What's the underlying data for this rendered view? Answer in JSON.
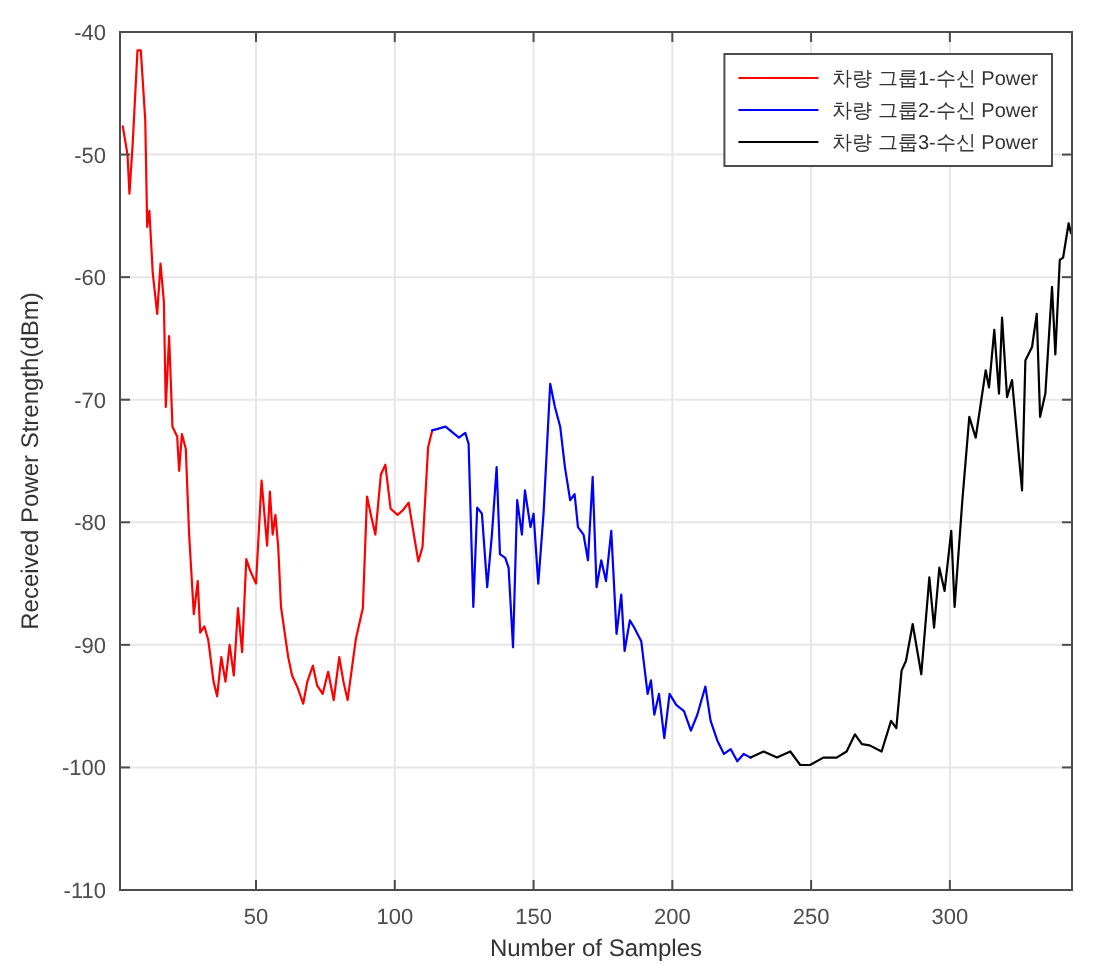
{
  "chart_data": {
    "type": "line",
    "xlabel": "Number of Samples",
    "ylabel": "Received Power Strength(dBm)",
    "xlim": [
      1,
      344
    ],
    "ylim": [
      -110,
      -40
    ],
    "xticks": [
      50,
      100,
      150,
      200,
      250,
      300
    ],
    "yticks": [
      -110,
      -100,
      -90,
      -80,
      -70,
      -60,
      -50,
      -40
    ],
    "grid": true,
    "legend": "top right",
    "series": [
      {
        "name": "차량 그룹1-수신 Power",
        "color": "#ff0000",
        "x": [
          2,
          3.7,
          4.4,
          5.6,
          7.3,
          8.5,
          10.1,
          10.8,
          11.6,
          12.8,
          14.4,
          15.6,
          16.8,
          17.5,
          18.7,
          19.9,
          21.6,
          22.3,
          23.3,
          24.7,
          25.9,
          27.6,
          29,
          29.9,
          31.4,
          32.8,
          34.7,
          36,
          37.5,
          39,
          40.5,
          42,
          43.5,
          45,
          46.5,
          48,
          50,
          52,
          54,
          55,
          56,
          57,
          58,
          59,
          61.6,
          63,
          65,
          67,
          68.5,
          70.5,
          72,
          74,
          76,
          78,
          80,
          81.5,
          83,
          84.5,
          86,
          88.5,
          90,
          91.5,
          93,
          95,
          96.6,
          98.5,
          101,
          103,
          105,
          106.5,
          108.5,
          110,
          112,
          113.5
        ],
        "values": [
          -47.7,
          -50,
          -53.2,
          -49,
          -41.5,
          -41.5,
          -47.2,
          -55.9,
          -54.6,
          -59.7,
          -63,
          -58.9,
          -62,
          -70.6,
          -64.8,
          -72.2,
          -73,
          -75.8,
          -72.8,
          -74,
          -81,
          -87.5,
          -84.8,
          -89,
          -88.5,
          -89.6,
          -93,
          -94.2,
          -91,
          -93,
          -90,
          -92.5,
          -87,
          -90.6,
          -83,
          -84,
          -85,
          -76.6,
          -81.9,
          -77.5,
          -81,
          -79.4,
          -82,
          -86.9,
          -91,
          -92.5,
          -93.5,
          -94.8,
          -93,
          -91.7,
          -93.3,
          -94,
          -92.2,
          -94.5,
          -91,
          -93,
          -94.5,
          -92,
          -89.5,
          -87,
          -77.9,
          -79.5,
          -81,
          -76.1,
          -75.3,
          -78.9,
          -79.4,
          -79,
          -78.4,
          -80.5,
          -83.2,
          -82,
          -73.9,
          -72.5
        ]
      },
      {
        "name": "차량 그룹2-수신 Power",
        "color": "#0000ff",
        "x": [
          113.5,
          118.3,
          123.1,
          125.4,
          126.6,
          128.3,
          129.7,
          131.4,
          133.3,
          135,
          136.7,
          137.9,
          139.8,
          141,
          142.6,
          144.1,
          145.8,
          146.9,
          148.9,
          150,
          151.7,
          153.6,
          156,
          157.7,
          159.6,
          161.3,
          163.2,
          164.8,
          166,
          168,
          169.6,
          171.3,
          172.7,
          174.4,
          176.1,
          178,
          179.9,
          181.6,
          182.8,
          184.7,
          186.3,
          188.8,
          191.1,
          192.3,
          193.5,
          195.2,
          197.1,
          199,
          201.4,
          204.2,
          206.7,
          209,
          211.9,
          213.8,
          216.2,
          218.6,
          221,
          223.4,
          225.7,
          228.2
        ],
        "values": [
          -72.5,
          -72.2,
          -73.1,
          -72.7,
          -73.6,
          -86.9,
          -78.8,
          -79.3,
          -85.3,
          -81,
          -75.5,
          -82.6,
          -82.9,
          -83.7,
          -90.2,
          -78.2,
          -81,
          -77.4,
          -80.4,
          -79.3,
          -85,
          -79.3,
          -68.7,
          -70.6,
          -72.2,
          -75.5,
          -78.2,
          -77.7,
          -80.4,
          -81,
          -83.1,
          -76.3,
          -85.3,
          -83.1,
          -84.8,
          -80.7,
          -89.1,
          -85.9,
          -90.5,
          -88,
          -88.6,
          -89.7,
          -94,
          -92.9,
          -95.7,
          -94,
          -97.6,
          -94,
          -94.9,
          -95.4,
          -97,
          -95.7,
          -93.4,
          -96.2,
          -97.8,
          -98.9,
          -98.5,
          -99.5,
          -98.9,
          -99.2
        ]
      },
      {
        "name": "차량 그룹3-수신 Power",
        "color": "#000000",
        "x": [
          228.2,
          232.9,
          237.7,
          242.5,
          246.1,
          249.6,
          254.4,
          259.2,
          262.8,
          265.8,
          268.3,
          271.1,
          275.4,
          278.8,
          280.7,
          282.6,
          284.2,
          286.6,
          289.7,
          292.6,
          294.3,
          296.2,
          298.1,
          300.5,
          301.7,
          304.5,
          307,
          309.3,
          312.9,
          314.1,
          316,
          317.7,
          318.8,
          320.6,
          322.4,
          326,
          327.2,
          329.6,
          331.3,
          332.5,
          334.4,
          336.8,
          338,
          339.6,
          340.8,
          342.8,
          343.6
        ],
        "values": [
          -99.2,
          -98.7,
          -99.2,
          -98.7,
          -99.8,
          -99.8,
          -99.2,
          -99.2,
          -98.7,
          -97.3,
          -98.1,
          -98.2,
          -98.7,
          -96.2,
          -96.8,
          -92.1,
          -91.3,
          -88.3,
          -92.4,
          -84.5,
          -88.6,
          -83.7,
          -85.6,
          -80.7,
          -86.9,
          -78.2,
          -71.4,
          -73.1,
          -67.6,
          -69,
          -64.3,
          -69.5,
          -63.3,
          -69.8,
          -68.4,
          -77.4,
          -66.8,
          -65.7,
          -63,
          -71.4,
          -69.5,
          -60.8,
          -66.3,
          -58.6,
          -58.4,
          -55.6,
          -56.4
        ]
      }
    ]
  }
}
